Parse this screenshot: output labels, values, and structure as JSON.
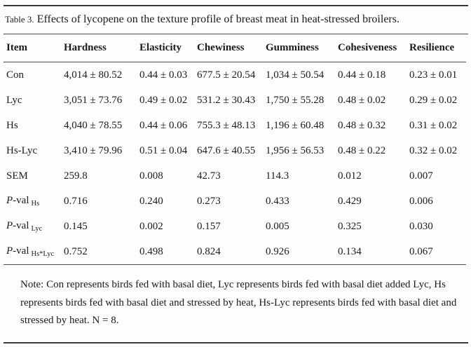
{
  "title": {
    "label": "Table 3.",
    "text": "Effects of lycopene on the texture profile of breast meat in heat-stressed broilers."
  },
  "table": {
    "columns": [
      "Item",
      "Hardness",
      "Elasticity",
      "Chewiness",
      "Gumminess",
      "Cohesiveness",
      "Resilience"
    ],
    "rows": [
      {
        "item_parts": [
          {
            "t": "Con"
          }
        ],
        "values": [
          "4,014 ± 80.52",
          "0.44 ± 0.03",
          "677.5 ± 20.54",
          "1,034 ± 50.54",
          "0.44 ± 0.18",
          "0.23 ± 0.01"
        ]
      },
      {
        "item_parts": [
          {
            "t": "Lyc"
          }
        ],
        "values": [
          "3,051 ± 73.76",
          "0.49 ± 0.02",
          "531.2 ± 30.43",
          "1,750 ± 55.28",
          "0.48 ± 0.02",
          "0.29 ± 0.02"
        ]
      },
      {
        "item_parts": [
          {
            "t": "Hs"
          }
        ],
        "values": [
          "4,040 ± 78.55",
          "0.44 ± 0.06",
          "755.3 ± 48.13",
          "1,196 ± 60.48",
          "0.48 ± 0.32",
          "0.31 ± 0.02"
        ]
      },
      {
        "item_parts": [
          {
            "t": "Hs-Lyc"
          }
        ],
        "values": [
          "3,410 ± 79.96",
          "0.51 ± 0.04",
          "647.6 ± 40.55",
          "1,956 ± 56.53",
          "0.48 ± 0.22",
          "0.32 ± 0.02"
        ]
      },
      {
        "item_parts": [
          {
            "t": "SEM"
          }
        ],
        "values": [
          "259.8",
          "0.008",
          "42.73",
          "114.3",
          "0.012",
          "0.007"
        ]
      },
      {
        "item_parts": [
          {
            "t": "P",
            "style": "italic"
          },
          {
            "t": "-val"
          },
          {
            "t": "Hs",
            "style": "sub"
          }
        ],
        "values": [
          "0.716",
          "0.240",
          "0.273",
          "0.433",
          "0.429",
          "0.006"
        ]
      },
      {
        "item_parts": [
          {
            "t": "P",
            "style": "italic"
          },
          {
            "t": "-val"
          },
          {
            "t": "Lyc",
            "style": "sub"
          }
        ],
        "values": [
          "0.145",
          "0.002",
          "0.157",
          "0.005",
          "0.325",
          "0.030"
        ]
      },
      {
        "item_parts": [
          {
            "t": "P",
            "style": "italic"
          },
          {
            "t": "-val"
          },
          {
            "t": "Hs*Lyc",
            "style": "sub"
          }
        ],
        "values": [
          "0.752",
          "0.498",
          "0.824",
          "0.926",
          "0.134",
          "0.067"
        ]
      }
    ]
  },
  "note": "Note: Con represents birds fed with basal diet, Lyc represents birds fed with basal diet added Lyc, Hs represents birds fed with basal diet and stressed by heat, Hs-Lyc represents birds fed with basal diet and stressed by heat. N = 8."
}
